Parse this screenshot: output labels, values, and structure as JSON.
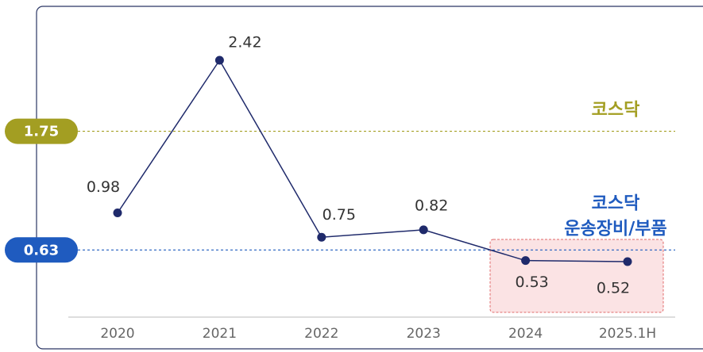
{
  "chart_data": {
    "type": "line",
    "categories": [
      "2020",
      "2021",
      "2022",
      "2023",
      "2024",
      "2025.1H"
    ],
    "series": [
      {
        "color": "#1f2a6b",
        "values": [
          0.98,
          2.42,
          0.75,
          0.82,
          0.53,
          0.52
        ]
      }
    ],
    "reference_lines": [
      {
        "value": 1.75,
        "name": [
          "코스닥"
        ],
        "color": "#a39e22"
      },
      {
        "value": 0.63,
        "name": [
          "코스닥",
          "운송장비/부품"
        ],
        "color": "#1f5bbf"
      }
    ]
  }
}
